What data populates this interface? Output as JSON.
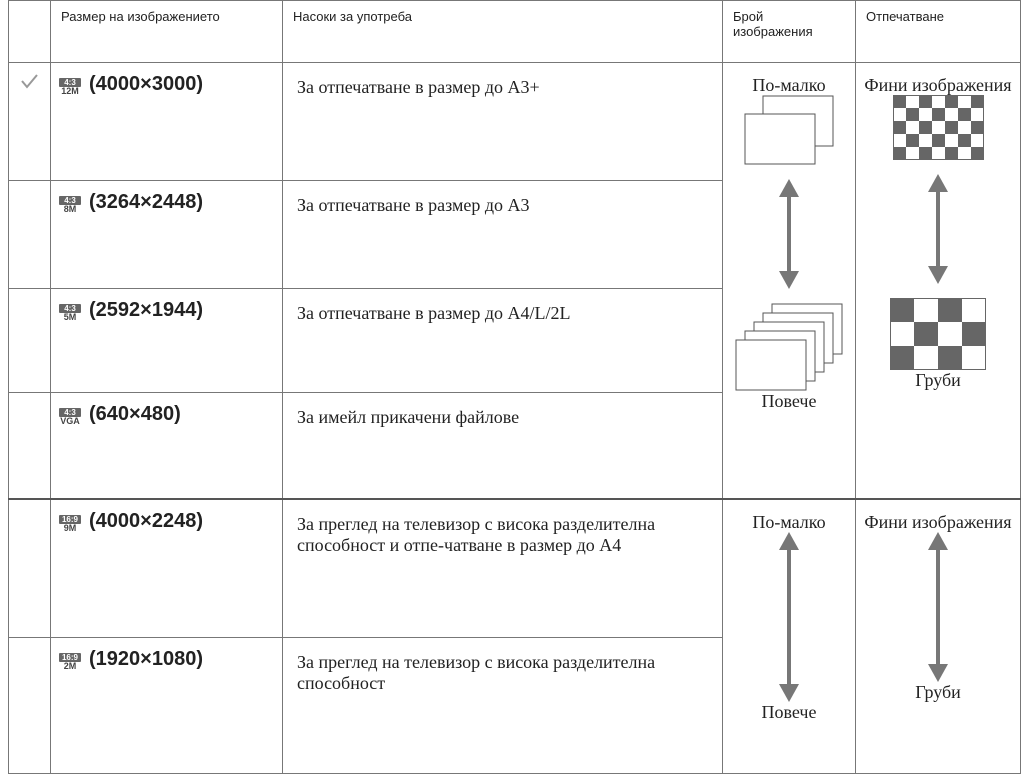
{
  "header": {
    "columns": [
      "Размер на изображението",
      "Насоки за употреба",
      "Брой изображения",
      "Отпечатване"
    ]
  },
  "rows": [
    {
      "aspect": "4:3",
      "size": "12M",
      "resolution": "(4000×3000)",
      "tip": "За отпечатване в размер до A3+"
    },
    {
      "aspect": "4:3",
      "size": "8M",
      "resolution": "(3264×2448)",
      "tip": "За отпечатване в размер до A3"
    },
    {
      "aspect": "4:3",
      "size": "5M",
      "resolution": "(2592×1944)",
      "tip": "За отпечатване в размер до A4/L/2L"
    },
    {
      "aspect": "4:3",
      "size": "VGA",
      "resolution": "(640×480)",
      "tip": "За имейл прикачени файлове"
    },
    {
      "aspect": "16:9",
      "size": "9M",
      "resolution": "(4000×2248)",
      "tip": "За преглед на телевизор с висока разделителна способност и отпе-чатване в размер до A4"
    },
    {
      "aspect": "16:9",
      "size": "2M",
      "resolution": "(1920×1080)",
      "tip": "За преглед на телевизор с висока разделителна способност"
    }
  ],
  "groups": [
    {
      "count_top": "По-малко",
      "count_bottom": "Повече",
      "print_top": "Фини изображения",
      "print_bottom": "Груби"
    },
    {
      "count_top": "По-малко",
      "count_bottom": "Повече",
      "print_top": "Фини изображения",
      "print_bottom": "Груби"
    }
  ]
}
